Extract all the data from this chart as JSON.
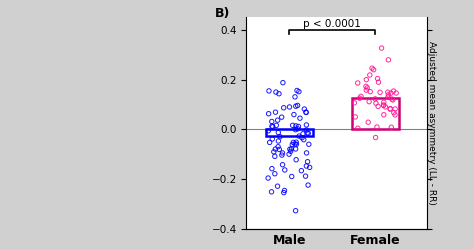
{
  "categories": [
    "Male",
    "Female"
  ],
  "bar_means": [
    -0.025,
    0.125
  ],
  "bar_edge_colors": [
    "blue",
    "#cc0077"
  ],
  "ylim": [
    -0.4,
    0.45
  ],
  "yticks": [
    -0.4,
    -0.2,
    0.0,
    0.2,
    0.4
  ],
  "ylabel_right": "Adjusted mean asymmetry (LL - RR)",
  "panel_label_B": "B)",
  "pvalue_text": "p < 0.0001",
  "male_dots_color": "blue",
  "female_dots_color": "#ff1493",
  "seed": 42,
  "n_male": 80,
  "n_female": 45,
  "male_mean": -0.025,
  "male_std": 0.115,
  "female_mean": 0.125,
  "female_std": 0.082,
  "bg_color": "#d0d0d0",
  "fig_width": 4.74,
  "fig_height": 2.49
}
